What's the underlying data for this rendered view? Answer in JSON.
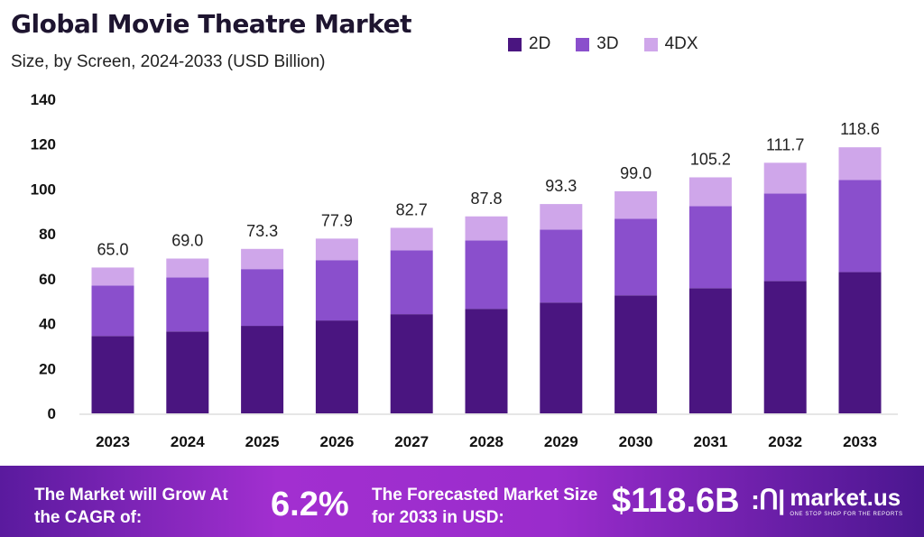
{
  "chart_data": {
    "type": "bar",
    "stacked": true,
    "title": "Global Movie Theatre Market",
    "subtitle": "Size, by Screen, 2024-2033 (USD Billion)",
    "categories": [
      "2023",
      "2024",
      "2025",
      "2026",
      "2027",
      "2028",
      "2029",
      "2030",
      "2031",
      "2032",
      "2033"
    ],
    "series": [
      {
        "name": "2D",
        "color": "#4a1580",
        "values": [
          34.5,
          36.5,
          39.0,
          41.4,
          44.2,
          46.6,
          49.4,
          52.6,
          55.8,
          59.0,
          63.0
        ]
      },
      {
        "name": "3D",
        "color": "#8a4fcc",
        "values": [
          22.5,
          24.1,
          25.3,
          26.9,
          28.5,
          30.5,
          32.5,
          34.1,
          36.6,
          39.0,
          41.0
        ]
      },
      {
        "name": "4DX",
        "color": "#cfa6ea",
        "values": [
          8.0,
          8.4,
          9.0,
          9.6,
          10.0,
          10.7,
          11.4,
          12.3,
          12.8,
          13.7,
          14.6
        ]
      }
    ],
    "totals": [
      "65.0",
      "69.0",
      "73.3",
      "77.9",
      "82.7",
      "87.8",
      "93.3",
      "99.0",
      "105.2",
      "111.7",
      "118.6"
    ],
    "yticks": [
      0,
      20,
      40,
      60,
      80,
      100,
      120,
      140
    ],
    "ylim": [
      0,
      140
    ],
    "grid": false,
    "legend_position": "top"
  },
  "footer": {
    "cagr_label": "The Market will Grow At the CAGR of:",
    "cagr_value": "6.2%",
    "forecast_label": "The Forecasted Market Size for 2033 in USD:",
    "forecast_value": "$118.6B",
    "brand": "market.us",
    "tagline": "ONE STOP SHOP FOR THE REPORTS"
  }
}
